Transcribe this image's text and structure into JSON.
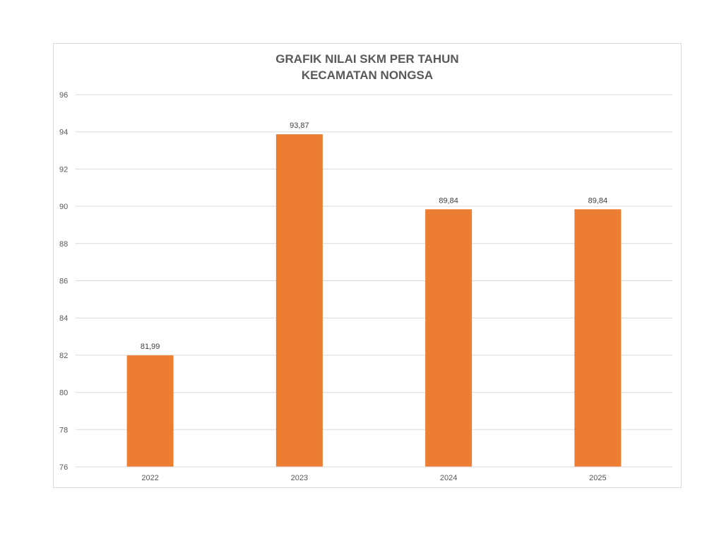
{
  "chart_data": {
    "type": "bar",
    "title": [
      "GRAFIK NILAI SKM PER TAHUN",
      "KECAMATAN NONGSA"
    ],
    "categories": [
      "2022",
      "2023",
      "2024",
      "2025"
    ],
    "values": [
      81.99,
      93.87,
      89.84,
      89.84
    ],
    "data_labels": [
      "81,99",
      "93,87",
      "89,84",
      "89,84"
    ],
    "ylim": [
      76,
      96
    ],
    "yticks": [
      "76",
      "78",
      "80",
      "82",
      "84",
      "86",
      "88",
      "90",
      "92",
      "94",
      "96"
    ],
    "grid": true,
    "legend": "none",
    "bar_color": "#ED7D31"
  }
}
